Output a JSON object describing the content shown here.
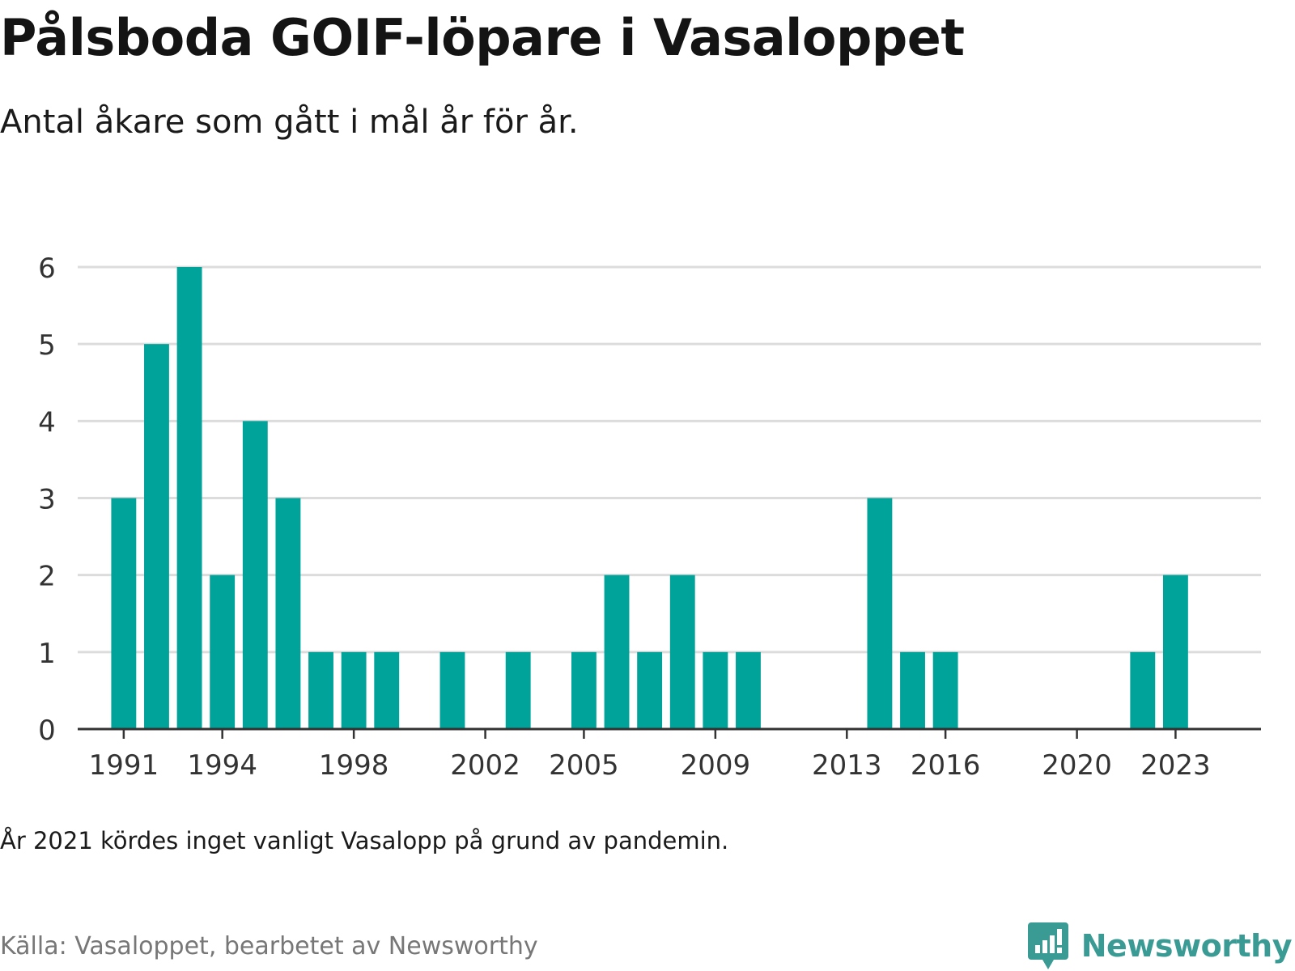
{
  "header": {
    "title": "Pålsboda GOIF-löpare i Vasaloppet",
    "subtitle": "Antal åkare som gått i mål år för år."
  },
  "footer": {
    "note": "År 2021 kördes inget vanligt Vasalopp på grund av pandemin.",
    "source": "Källa: Vasaloppet, bearbetet av Newsworthy",
    "brand": "Newsworthy"
  },
  "colors": {
    "bar": "#00a39a",
    "brand": "#3a9b95",
    "grid": "#dcdcdc",
    "axis": "#333333",
    "tick_text": "#333333"
  },
  "icons": {
    "brand_logo": "bar-chart-speech-bubble-icon"
  },
  "chart_data": {
    "type": "bar",
    "title": "Pålsboda GOIF-löpare i Vasaloppet",
    "subtitle": "Antal åkare som gått i mål år för år.",
    "xlabel": "",
    "ylabel": "",
    "ylim": [
      0,
      6
    ],
    "yticks": [
      0,
      1,
      2,
      3,
      4,
      5,
      6
    ],
    "xlim": [
      1989.6,
      2025.6
    ],
    "xticks": [
      1991,
      1994,
      1998,
      2002,
      2005,
      2009,
      2013,
      2016,
      2020,
      2023
    ],
    "grid": true,
    "legend": "none",
    "categories": [
      1991,
      1992,
      1993,
      1994,
      1995,
      1996,
      1997,
      1998,
      1999,
      2001,
      2003,
      2005,
      2006,
      2007,
      2008,
      2009,
      2010,
      2014,
      2015,
      2016,
      2022,
      2023
    ],
    "values": [
      3,
      5,
      6,
      2,
      4,
      3,
      1,
      1,
      1,
      1,
      1,
      1,
      2,
      1,
      2,
      1,
      1,
      3,
      1,
      1,
      1,
      2
    ]
  }
}
